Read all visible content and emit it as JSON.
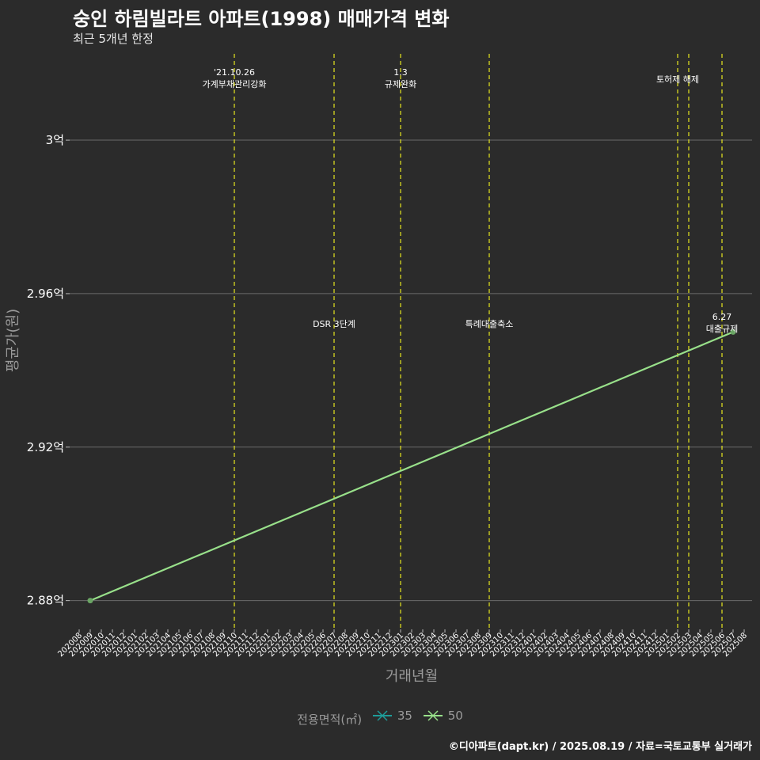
{
  "chart_data": {
    "type": "line",
    "title": "숭인 하림빌라트 아파트(1998) 매매가격 변화",
    "subtitle": "최근 5개년 한정",
    "xlabel": "거래년월",
    "ylabel": "평균가(원)",
    "categories": [
      "202008",
      "202009",
      "202010",
      "202011",
      "202012",
      "202101",
      "202102",
      "202103",
      "202104",
      "202105",
      "202106",
      "202107",
      "202108",
      "202109",
      "202110",
      "202111",
      "202112",
      "202201",
      "202202",
      "202203",
      "202204",
      "202205",
      "202206",
      "202207",
      "202208",
      "202209",
      "202210",
      "202211",
      "202212",
      "202301",
      "202302",
      "202303",
      "202304",
      "202305",
      "202306",
      "202307",
      "202308",
      "202309",
      "202310",
      "202311",
      "202312",
      "202401",
      "202402",
      "202403",
      "202404",
      "202405",
      "202406",
      "202407",
      "202408",
      "202409",
      "202410",
      "202411",
      "202412",
      "202501",
      "202502",
      "202503",
      "202504",
      "202505",
      "202506",
      "202507",
      "202508"
    ],
    "yticks": [
      2.88,
      2.92,
      2.96,
      3.0
    ],
    "ytick_labels": [
      "2.88억",
      "2.92억",
      "2.96억",
      "3억"
    ],
    "ylim": [
      2.8725,
      3.0225
    ],
    "series": [
      {
        "name": "35",
        "color": "#1e9c99",
        "x": [],
        "values": []
      },
      {
        "name": "50",
        "color": "#98e08a",
        "x": [
          "202009",
          "202507"
        ],
        "values": [
          2.88,
          2.95
        ]
      }
    ],
    "events": [
      {
        "x": "202110",
        "label": "'21.10.26\n가계부채관리강화",
        "pos": "top"
      },
      {
        "x": "202207",
        "label": "DSR 3단계",
        "pos": "middle"
      },
      {
        "x": "202301",
        "label": "1.3\n규제완화",
        "pos": "top"
      },
      {
        "x": "202309",
        "label": "특례대출축소",
        "pos": "middle"
      },
      {
        "x": "202502",
        "label": "토허제 해제",
        "pos": "top-mid"
      },
      {
        "x": "202503",
        "label": "",
        "pos": "none"
      },
      {
        "x": "202506",
        "label": "6.27\n대출규제",
        "pos": "middle"
      }
    ],
    "legend_title": "전용면적(㎡)",
    "grid": true,
    "legend_position": "bottom"
  },
  "caption": "©디아파트(dapt.kr) / 2025.08.19 / 자료=국토교통부 실거래가",
  "colors": {
    "background": "#2b2b2b",
    "grid": "#6b6b6b",
    "event_line": "#e6e61e"
  }
}
